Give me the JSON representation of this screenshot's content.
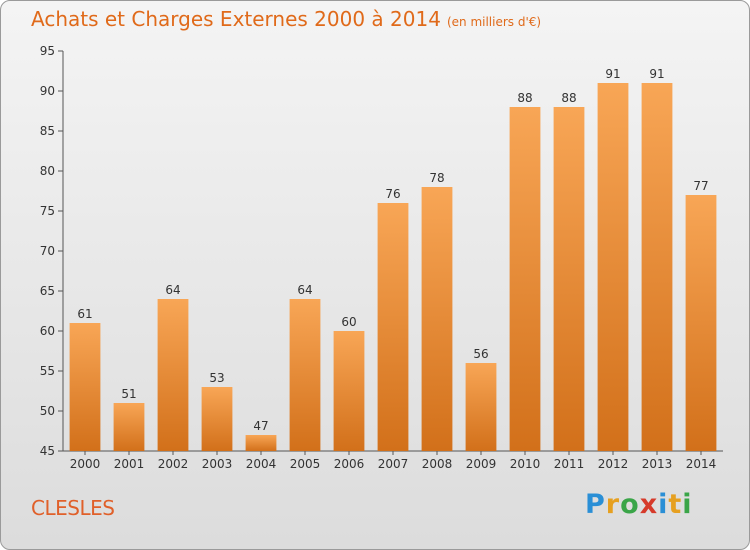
{
  "chart_data": {
    "type": "bar",
    "title": "Achats et Charges Externes 2000 à 2014",
    "subtitle": "(en milliers d'€)",
    "categories": [
      "2000",
      "2001",
      "2002",
      "2003",
      "2004",
      "2005",
      "2006",
      "2007",
      "2008",
      "2009",
      "2010",
      "2011",
      "2012",
      "2013",
      "2014"
    ],
    "values": [
      61,
      51,
      64,
      53,
      47,
      64,
      60,
      76,
      78,
      56,
      88,
      88,
      91,
      91,
      77
    ],
    "ylim": [
      45,
      95
    ],
    "yticks": [
      45,
      50,
      55,
      60,
      65,
      70,
      75,
      80,
      85,
      90,
      95
    ],
    "grid": false,
    "bar_color": "#f08a2a"
  },
  "footer": {
    "place": "CLESLES",
    "logo": [
      "P",
      "r",
      "o",
      "x",
      "i",
      "t",
      "i"
    ],
    "logo_colors": [
      "#2a8fd6",
      "#e6a020",
      "#3aa548",
      "#d63a2a",
      "#2a8fd6",
      "#e6a020",
      "#3aa548"
    ]
  }
}
